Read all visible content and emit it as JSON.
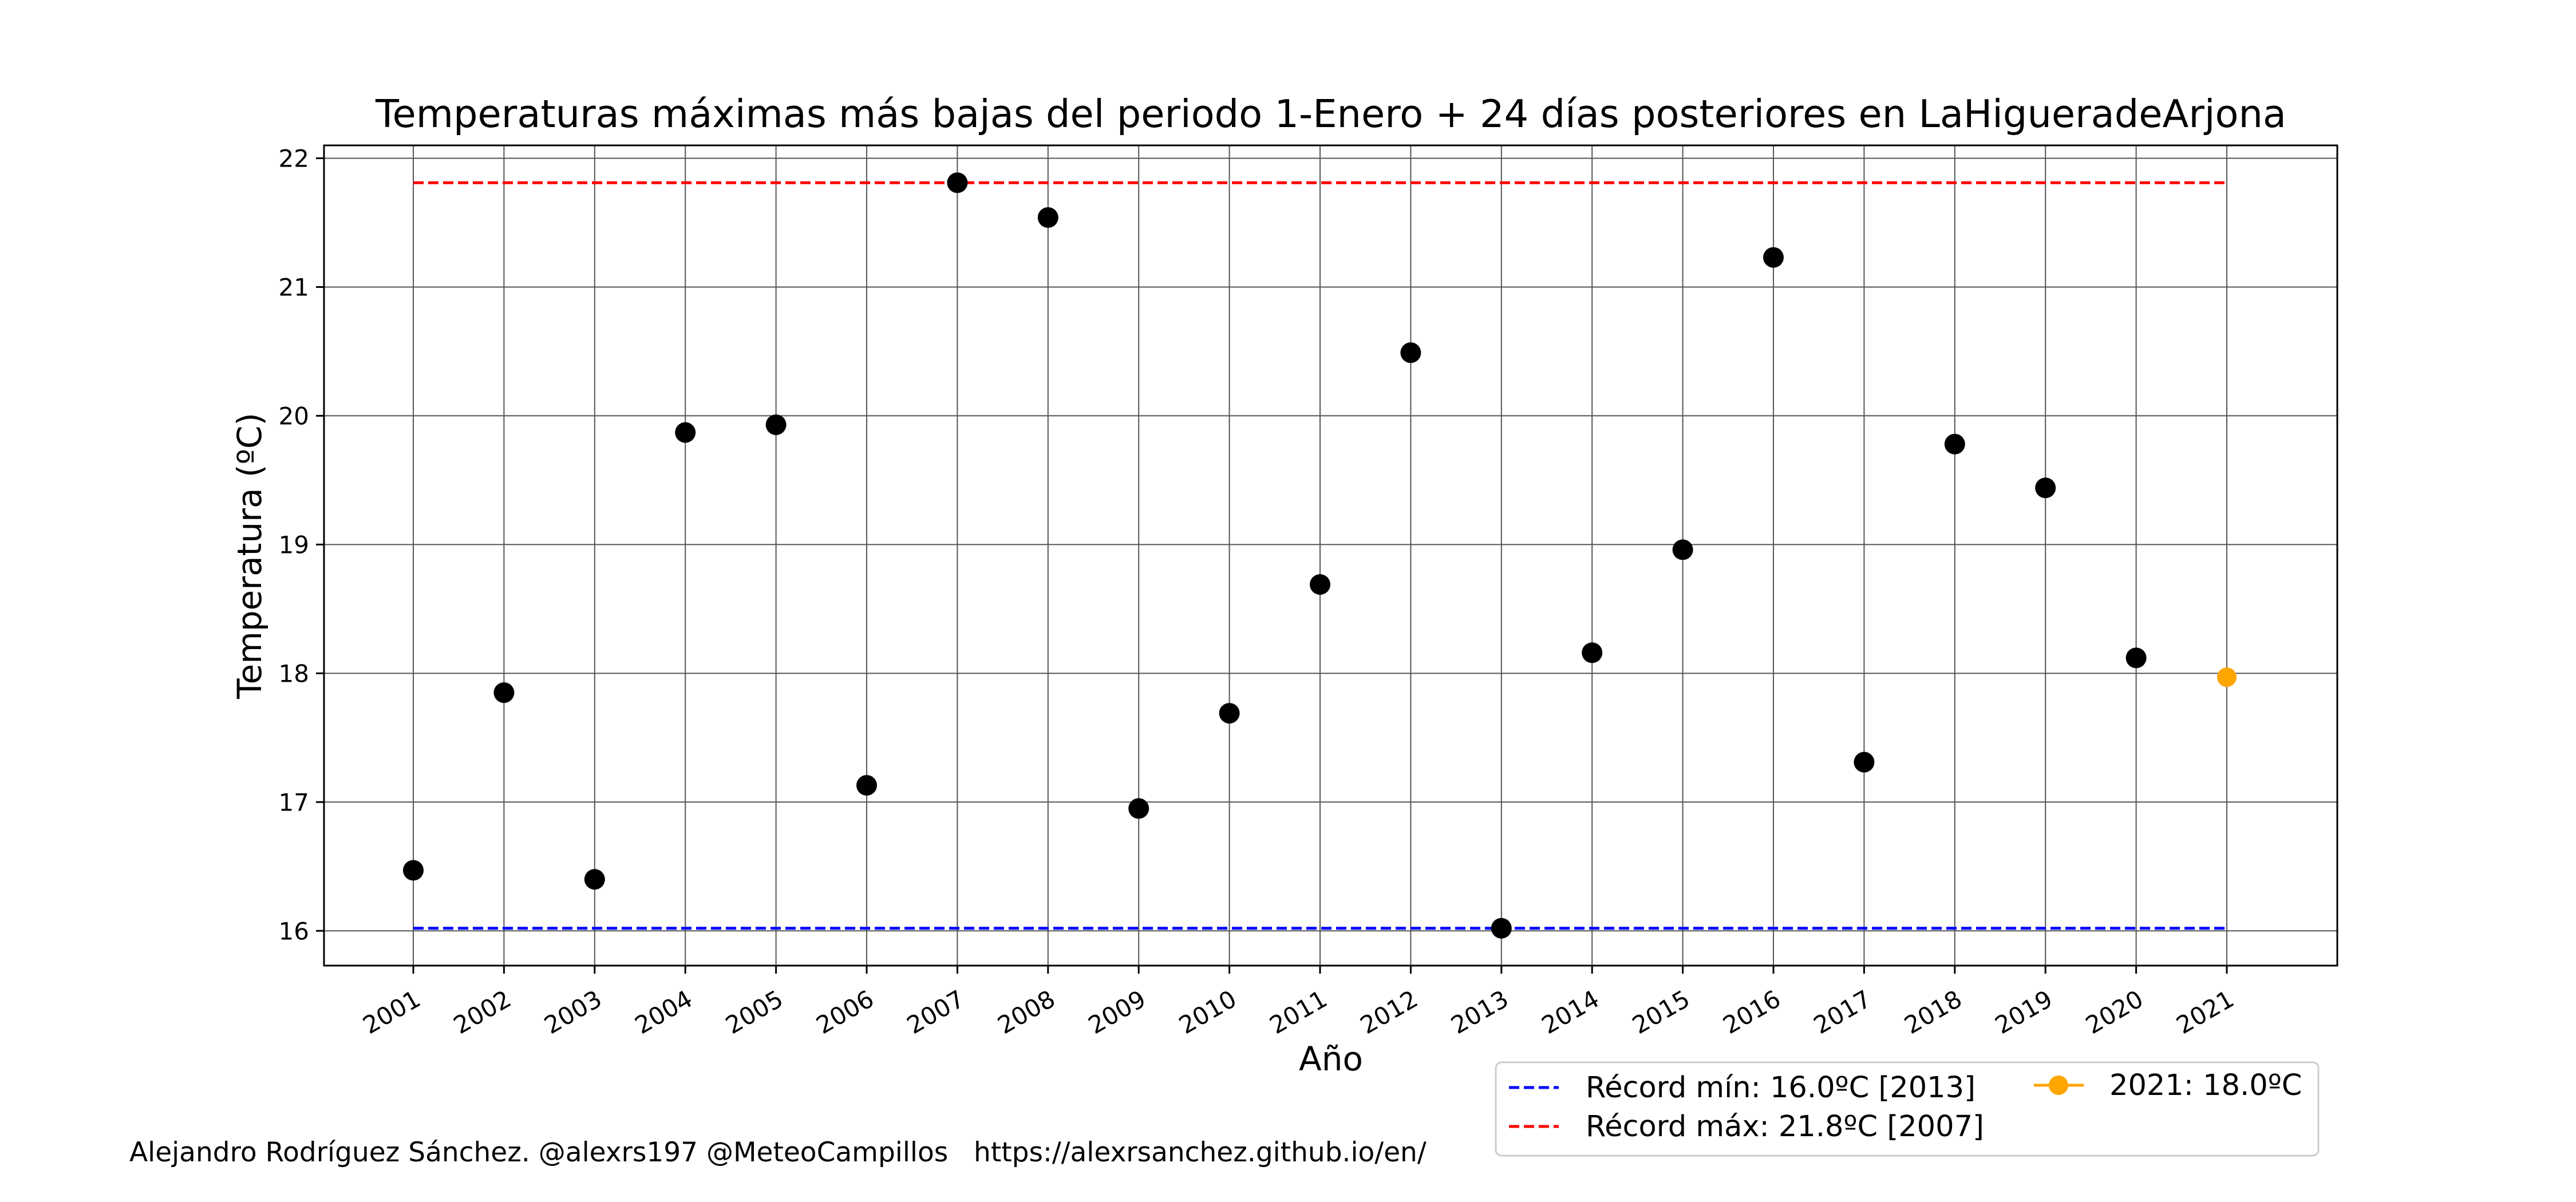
{
  "chart_data": {
    "type": "scatter",
    "title": "Temperaturas máximas más bajas del periodo 1-Enero + 24 días posteriores en LaHigueradeArjona",
    "xlabel": "Año",
    "ylabel": "Temperatura (ºC)",
    "ylim": [
      15.73,
      22.1
    ],
    "yticks": [
      16,
      17,
      18,
      19,
      20,
      21,
      22
    ],
    "grid": true,
    "legend_position": "below-right",
    "categories": [
      "2001",
      "2002",
      "2003",
      "2004",
      "2005",
      "2006",
      "2007",
      "2008",
      "2009",
      "2010",
      "2011",
      "2012",
      "2013",
      "2014",
      "2015",
      "2016",
      "2017",
      "2018",
      "2019",
      "2020",
      "2021"
    ],
    "series": [
      {
        "color": "#000000",
        "x": [
          "2001",
          "2002",
          "2003",
          "2004",
          "2005",
          "2006",
          "2007",
          "2008",
          "2009",
          "2010",
          "2011",
          "2012",
          "2013",
          "2014",
          "2015",
          "2016",
          "2017",
          "2018",
          "2019",
          "2020"
        ],
        "values": [
          16.47,
          17.85,
          16.4,
          19.87,
          19.93,
          17.13,
          21.81,
          21.54,
          16.95,
          17.69,
          18.69,
          20.49,
          16.02,
          18.16,
          18.96,
          21.23,
          17.31,
          19.78,
          19.44,
          18.12
        ]
      },
      {
        "name": "2021: 18.0ºC",
        "color": "#ffa500",
        "x": [
          "2021"
        ],
        "values": [
          17.97
        ]
      }
    ],
    "reference_lines": [
      {
        "name": "Récord mín: 16.0ºC [2013]",
        "value": 16.02,
        "color": "#0000ff",
        "style": "dashed"
      },
      {
        "name": "Récord máx: 21.8ºC [2007]",
        "value": 21.81,
        "color": "#ff0000",
        "style": "dashed"
      }
    ]
  },
  "footer": {
    "credit": "Alejandro Rodríguez Sánchez. @alexrs197 @MeteoCampillos   https://alexrsanchez.github.io/en/"
  }
}
